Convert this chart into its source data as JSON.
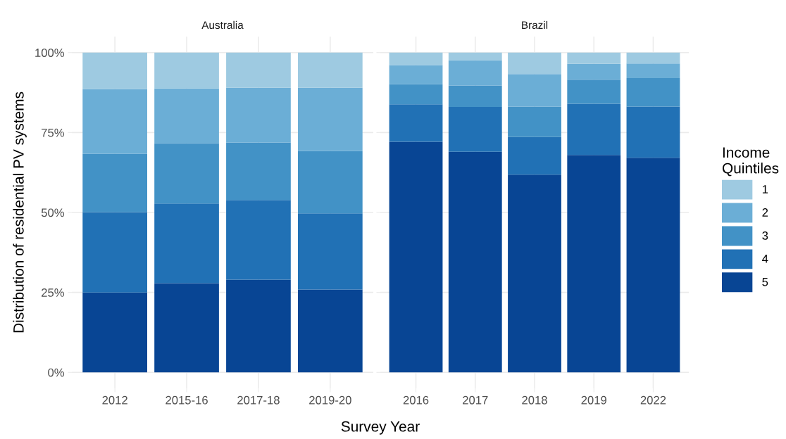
{
  "chart_data": [
    {
      "type": "bar",
      "title": "Australia",
      "xlabel": "Survey Year",
      "ylabel": "Distribution of residential PV systems",
      "stacked": true,
      "grid": true,
      "legend": "right",
      "legend_title": "Income\nQuintiles",
      "categories": [
        "2012",
        "2015-16",
        "2017-18",
        "2019-20"
      ],
      "ylim": [
        -5,
        105
      ],
      "yticks": [
        {
          "value": 0,
          "label": "0%"
        },
        {
          "value": 25,
          "label": "25%"
        },
        {
          "value": 50,
          "label": "50%"
        },
        {
          "value": 75,
          "label": "75%"
        },
        {
          "value": 100,
          "label": "100%"
        }
      ],
      "series": [
        {
          "name": "5",
          "color": "#084594",
          "values": [
            25.0,
            27.9,
            29.0,
            25.9
          ]
        },
        {
          "name": "4",
          "color": "#2171b5",
          "values": [
            25.1,
            24.9,
            24.9,
            23.8
          ]
        },
        {
          "name": "3",
          "color": "#4292c6",
          "values": [
            18.2,
            18.8,
            18.0,
            19.5
          ]
        },
        {
          "name": "2",
          "color": "#6baed6",
          "values": [
            20.3,
            17.2,
            17.1,
            19.8
          ]
        },
        {
          "name": "1",
          "color": "#9ecae1",
          "values": [
            11.4,
            11.2,
            11.0,
            11.0
          ]
        }
      ]
    },
    {
      "type": "bar",
      "title": "Brazil",
      "stacked": true,
      "grid": true,
      "tick_labels": "x",
      "legend": "right",
      "categories": [
        "2016",
        "2017",
        "2018",
        "2019",
        "2022"
      ],
      "ylim": [
        -5,
        105
      ],
      "yticks": [
        0,
        25,
        50,
        75,
        100
      ],
      "series": [
        {
          "name": "5",
          "color": "#084594",
          "values": [
            72.1,
            69.0,
            61.8,
            68.0,
            67.1
          ]
        },
        {
          "name": "4",
          "color": "#2171b5",
          "values": [
            11.7,
            14.0,
            11.8,
            16.0,
            16.0
          ]
        },
        {
          "name": "3",
          "color": "#4292c6",
          "values": [
            6.3,
            6.7,
            9.5,
            7.5,
            8.9
          ]
        },
        {
          "name": "2",
          "color": "#6baed6",
          "values": [
            6.0,
            7.9,
            10.2,
            5.0,
            4.6
          ]
        },
        {
          "name": "1",
          "color": "#9ecae1",
          "values": [
            3.9,
            2.4,
            6.7,
            3.5,
            3.4
          ]
        }
      ]
    }
  ]
}
